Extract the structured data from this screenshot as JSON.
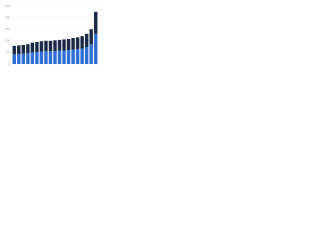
{
  "chart_data": {
    "type": "stacked-bar",
    "categories": [
      null,
      null,
      null,
      null,
      null,
      null,
      null,
      null,
      null,
      null,
      null,
      null,
      null,
      null,
      null,
      null,
      null,
      null,
      null
    ],
    "series": [
      {
        "color": "#2f6fd6",
        "values": [
          42,
          43,
          44,
          46,
          50,
          52,
          54,
          55,
          55,
          56,
          57,
          58,
          60,
          62,
          64,
          67,
          73,
          85,
          130
        ]
      },
      {
        "color": "#1b2a47",
        "values": [
          36,
          37,
          38,
          39,
          42,
          43,
          44,
          45,
          45,
          46,
          47,
          48,
          48,
          50,
          51,
          53,
          57,
          65,
          95
        ]
      }
    ],
    "ylim": [
      0,
      250
    ],
    "yticks": [
      0,
      50,
      100,
      150,
      200,
      250
    ],
    "grid": true
  }
}
